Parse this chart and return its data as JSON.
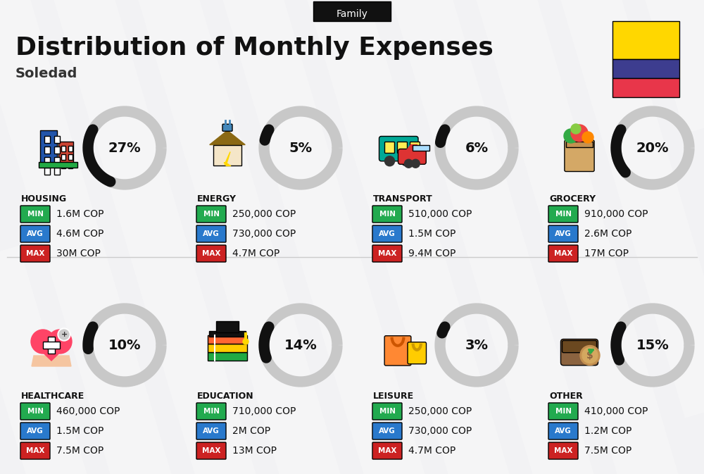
{
  "title": "Distribution of Monthly Expenses",
  "subtitle": "Soledad",
  "family_label": "Family",
  "bg_color": "#f2f2f4",
  "categories": [
    {
      "name": "HOUSING",
      "pct": 27,
      "min": "1.6M COP",
      "avg": "4.6M COP",
      "max": "30M COP",
      "col": 0,
      "row": 0
    },
    {
      "name": "ENERGY",
      "pct": 5,
      "min": "250,000 COP",
      "avg": "730,000 COP",
      "max": "4.7M COP",
      "col": 1,
      "row": 0
    },
    {
      "name": "TRANSPORT",
      "pct": 6,
      "min": "510,000 COP",
      "avg": "1.5M COP",
      "max": "9.4M COP",
      "col": 2,
      "row": 0
    },
    {
      "name": "GROCERY",
      "pct": 20,
      "min": "910,000 COP",
      "avg": "2.6M COP",
      "max": "17M COP",
      "col": 3,
      "row": 0
    },
    {
      "name": "HEALTHCARE",
      "pct": 10,
      "min": "460,000 COP",
      "avg": "1.5M COP",
      "max": "7.5M COP",
      "col": 0,
      "row": 1
    },
    {
      "name": "EDUCATION",
      "pct": 14,
      "min": "710,000 COP",
      "avg": "2M COP",
      "max": "13M COP",
      "col": 1,
      "row": 1
    },
    {
      "name": "LEISURE",
      "pct": 3,
      "min": "250,000 COP",
      "avg": "730,000 COP",
      "max": "4.7M COP",
      "col": 2,
      "row": 1
    },
    {
      "name": "OTHER",
      "pct": 15,
      "min": "410,000 COP",
      "avg": "1.2M COP",
      "max": "7.5M COP",
      "col": 3,
      "row": 1
    }
  ],
  "min_color": "#22aa4f",
  "avg_color": "#2979cc",
  "max_color": "#cc2222",
  "colombia_colors": [
    "#FFD700",
    "#3d3d8f",
    "#E8364A"
  ],
  "arc_color_filled": "#111111",
  "arc_color_bg": "#c8c8c8"
}
